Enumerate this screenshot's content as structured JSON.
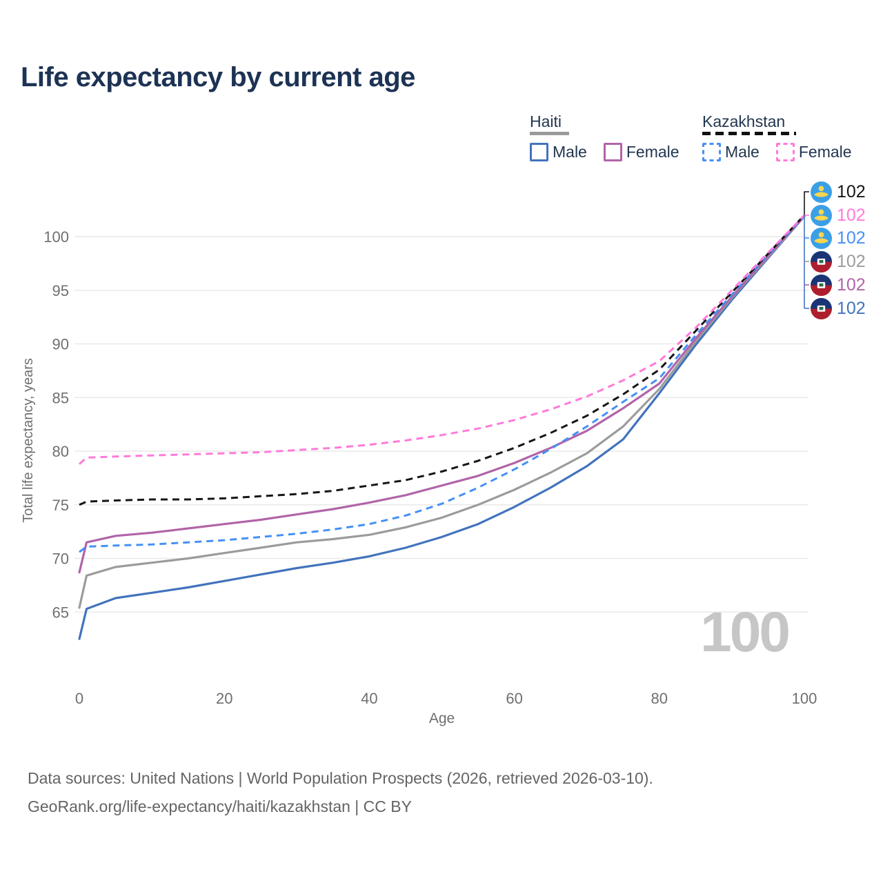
{
  "title": "Life expectancy by current age",
  "legend": {
    "haiti": {
      "label": "Haiti",
      "male": "Male",
      "female": "Female"
    },
    "kazakhstan": {
      "label": "Kazakhstan",
      "male": "Male",
      "female": "Female"
    }
  },
  "colors": {
    "haiti_male": "#4273bd",
    "haiti_total": "#9b9b9b",
    "haiti_female": "#b164a8",
    "kazakhstan_male": "#4590f5",
    "kazakhstan_total": "#161616",
    "kazakhstan_female": "#ff7ad9",
    "title_text": "#1d3354",
    "axis_text": "#6f6f6f",
    "gridline": "#e9e9e9",
    "watermark": "#c6c6c6"
  },
  "chart_data": {
    "type": "line",
    "title": "Life expectancy by current age",
    "xlabel": "Age",
    "ylabel": "Total life expectancy, years",
    "x_ticks": [
      0,
      20,
      40,
      60,
      80,
      100
    ],
    "y_ticks": [
      65,
      70,
      75,
      80,
      85,
      90,
      95,
      100
    ],
    "xlim": [
      0,
      100
    ],
    "ylim": [
      62,
      103
    ],
    "grid": "horizontal-only",
    "legend_position": "top-right",
    "hover_age_indicator": "100",
    "x": [
      0,
      1,
      5,
      10,
      15,
      20,
      25,
      30,
      35,
      40,
      45,
      50,
      55,
      60,
      65,
      70,
      75,
      80,
      85,
      90,
      95,
      100
    ],
    "series": [
      {
        "id": "haiti-male",
        "country": "Haiti",
        "sex": "Male",
        "style": "solid",
        "color": "#4273bd",
        "end_label": "102",
        "values": [
          62.5,
          65.3,
          66.3,
          66.8,
          67.3,
          67.9,
          68.5,
          69.1,
          69.6,
          70.2,
          71.0,
          72.0,
          73.2,
          74.8,
          76.6,
          78.6,
          81.1,
          85.4,
          89.9,
          94.1,
          98.0,
          101.9
        ]
      },
      {
        "id": "haiti-total",
        "country": "Haiti",
        "sex": "Both sexes",
        "style": "solid",
        "color": "#9b9b9b",
        "end_label": "102",
        "values": [
          65.4,
          68.4,
          69.2,
          69.6,
          70.0,
          70.5,
          71.0,
          71.5,
          71.8,
          72.2,
          72.9,
          73.8,
          75.0,
          76.4,
          78.0,
          79.8,
          82.3,
          85.8,
          90.2,
          94.3,
          98.1,
          101.9
        ]
      },
      {
        "id": "haiti-female",
        "country": "Haiti",
        "sex": "Female",
        "style": "solid",
        "color": "#b164a8",
        "end_label": "102",
        "values": [
          68.7,
          71.5,
          72.1,
          72.4,
          72.8,
          73.2,
          73.6,
          74.1,
          74.6,
          75.2,
          75.9,
          76.8,
          77.7,
          78.9,
          80.3,
          81.9,
          84.0,
          86.3,
          90.5,
          94.4,
          98.2,
          101.9
        ]
      },
      {
        "id": "kazakhstan-male",
        "country": "Kazakhstan",
        "sex": "Male",
        "style": "dashed",
        "color": "#4590f5",
        "end_label": "102",
        "values": [
          70.6,
          71.1,
          71.2,
          71.3,
          71.5,
          71.7,
          72.0,
          72.3,
          72.7,
          73.2,
          74.0,
          75.1,
          76.6,
          78.3,
          80.2,
          82.3,
          84.6,
          86.8,
          90.8,
          94.6,
          98.3,
          101.9
        ]
      },
      {
        "id": "kazakhstan-total",
        "country": "Kazakhstan",
        "sex": "Both sexes",
        "style": "dashed",
        "color": "#161616",
        "end_label": "102",
        "values": [
          75.0,
          75.3,
          75.4,
          75.5,
          75.5,
          75.6,
          75.8,
          76.0,
          76.3,
          76.8,
          77.3,
          78.1,
          79.1,
          80.3,
          81.7,
          83.3,
          85.3,
          87.6,
          91.2,
          94.8,
          98.4,
          102.0
        ]
      },
      {
        "id": "kazakhstan-female",
        "country": "Kazakhstan",
        "sex": "Female",
        "style": "dashed",
        "color": "#ff7ad9",
        "end_label": "102",
        "values": [
          78.8,
          79.4,
          79.5,
          79.6,
          79.7,
          79.8,
          79.9,
          80.1,
          80.3,
          80.6,
          81.0,
          81.5,
          82.1,
          82.9,
          83.9,
          85.1,
          86.6,
          88.4,
          91.5,
          95.0,
          98.5,
          102.0
        ]
      }
    ]
  },
  "end_labels": [
    {
      "flag": "kazakhstan",
      "series": "kazakhstan-total",
      "value": "102",
      "color": "#161616"
    },
    {
      "flag": "kazakhstan",
      "series": "kazakhstan-female",
      "value": "102",
      "color": "#ff7ad9"
    },
    {
      "flag": "kazakhstan",
      "series": "kazakhstan-male",
      "value": "102",
      "color": "#4590f5"
    },
    {
      "flag": "haiti",
      "series": "haiti-total",
      "value": "102",
      "color": "#9b9b9b"
    },
    {
      "flag": "haiti",
      "series": "haiti-female",
      "value": "102",
      "color": "#b164a8"
    },
    {
      "flag": "haiti",
      "series": "haiti-male",
      "value": "102",
      "color": "#4273bd"
    }
  ],
  "watermark": "100",
  "footer": {
    "line1": "Data sources: United Nations | World Population Prospects (2026, retrieved 2026-03-10).",
    "line2": "GeoRank.org/life-expectancy/haiti/kazakhstan | CC BY"
  }
}
